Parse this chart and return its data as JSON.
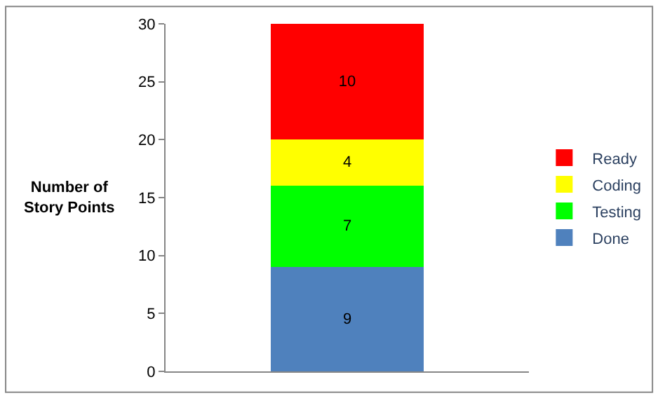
{
  "chart_data": {
    "type": "bar",
    "stacked": true,
    "categories": [
      null
    ],
    "series": [
      {
        "name": "Done",
        "color": "#4f81bd",
        "values": [
          9
        ]
      },
      {
        "name": "Testing",
        "color": "#00ff00",
        "values": [
          7
        ]
      },
      {
        "name": "Coding",
        "color": "#ffff00",
        "values": [
          4
        ]
      },
      {
        "name": "Ready",
        "color": "#ff0000",
        "values": [
          10
        ]
      }
    ],
    "ylabel": "Number of\nStory Points",
    "ylim": [
      0,
      30
    ],
    "yticks": [
      0,
      5,
      10,
      15,
      20,
      25,
      30
    ],
    "grid": false,
    "legend": "right",
    "data_labels": true
  }
}
